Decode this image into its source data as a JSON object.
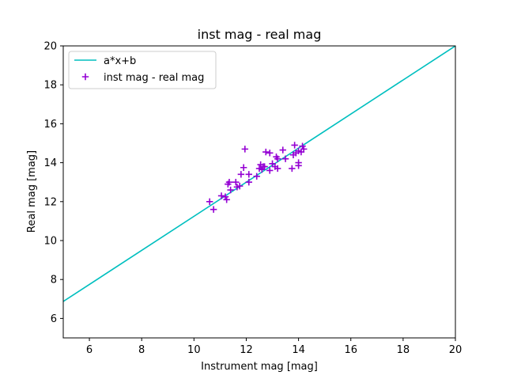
{
  "chart_data": {
    "type": "scatter",
    "title": "inst mag - real mag",
    "xlabel": "Instrument mag [mag]",
    "ylabel": "Real mag [mag]",
    "xlim": [
      5,
      20
    ],
    "ylim": [
      5,
      20
    ],
    "x_ticks": [
      6,
      8,
      10,
      12,
      14,
      16,
      18,
      20
    ],
    "y_ticks": [
      6,
      8,
      10,
      12,
      14,
      16,
      18,
      20
    ],
    "grid": false,
    "legend_position": "upper left",
    "fit_line": {
      "name": "a*x+b",
      "color": "#00bfbf",
      "points": [
        [
          5,
          6.87
        ],
        [
          20,
          20.0
        ]
      ]
    },
    "series": [
      {
        "name": "inst mag - real mag",
        "color": "#9400d3",
        "marker": "plus",
        "points": [
          [
            10.6,
            12.0
          ],
          [
            10.75,
            11.6
          ],
          [
            11.05,
            12.3
          ],
          [
            11.2,
            12.25
          ],
          [
            11.25,
            12.1
          ],
          [
            11.3,
            12.9
          ],
          [
            11.35,
            13.0
          ],
          [
            11.4,
            12.6
          ],
          [
            11.6,
            13.0
          ],
          [
            11.65,
            12.75
          ],
          [
            11.75,
            12.8
          ],
          [
            11.8,
            13.4
          ],
          [
            11.9,
            13.75
          ],
          [
            11.95,
            14.7
          ],
          [
            12.1,
            13.4
          ],
          [
            12.1,
            13.0
          ],
          [
            12.4,
            13.3
          ],
          [
            12.5,
            13.7
          ],
          [
            12.55,
            13.9
          ],
          [
            12.6,
            13.65
          ],
          [
            12.65,
            13.8
          ],
          [
            12.7,
            13.8
          ],
          [
            12.75,
            14.55
          ],
          [
            12.9,
            13.6
          ],
          [
            12.9,
            14.5
          ],
          [
            13.0,
            13.95
          ],
          [
            13.1,
            13.8
          ],
          [
            13.15,
            14.3
          ],
          [
            13.2,
            14.2
          ],
          [
            13.2,
            13.7
          ],
          [
            13.4,
            14.65
          ],
          [
            13.5,
            14.2
          ],
          [
            13.75,
            13.7
          ],
          [
            13.8,
            14.4
          ],
          [
            13.85,
            14.9
          ],
          [
            13.9,
            14.5
          ],
          [
            14.0,
            14.6
          ],
          [
            14.0,
            14.0
          ],
          [
            14.0,
            13.85
          ],
          [
            14.1,
            14.55
          ],
          [
            14.15,
            14.85
          ],
          [
            14.2,
            14.7
          ]
        ]
      }
    ]
  }
}
